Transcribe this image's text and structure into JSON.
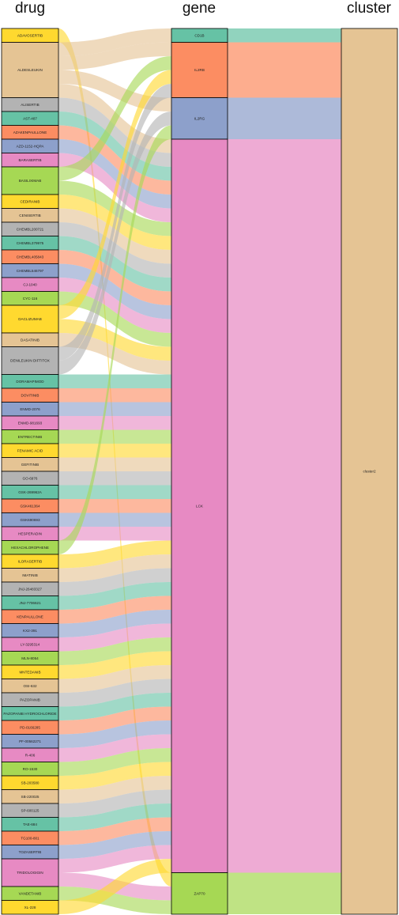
{
  "chart_data": {
    "type": "sankey",
    "stages": [
      "drug",
      "gene",
      "cluster"
    ],
    "drugs": [
      {
        "name": "ADAVOSERTIB",
        "weight": 1,
        "color": "#FFD92F"
      },
      {
        "name": "ALDESLEUKIN",
        "weight": 4,
        "color": "#E5C494"
      },
      {
        "name": "ALISERTIB",
        "weight": 1,
        "color": "#B3B3B3"
      },
      {
        "name": "AST-487",
        "weight": 1,
        "color": "#66C2A5"
      },
      {
        "name": "AZAKENPAULLONE",
        "weight": 1,
        "color": "#FC8D62"
      },
      {
        "name": "AZD-1152-HQPA",
        "weight": 1,
        "color": "#8DA0CB"
      },
      {
        "name": "BARASERTIB",
        "weight": 1,
        "color": "#E78AC3"
      },
      {
        "name": "BASILIXIMAB",
        "weight": 2,
        "color": "#A6D854"
      },
      {
        "name": "CEDIRANIB",
        "weight": 1,
        "color": "#FFD92F"
      },
      {
        "name": "CENISERTIB",
        "weight": 1,
        "color": "#E5C494"
      },
      {
        "name": "CHEMBL200721",
        "weight": 1,
        "color": "#B3B3B3"
      },
      {
        "name": "CHEMBL379975",
        "weight": 1,
        "color": "#66C2A5"
      },
      {
        "name": "CHEMBL405843",
        "weight": 1,
        "color": "#FC8D62"
      },
      {
        "name": "CHEMBL546797",
        "weight": 1,
        "color": "#8DA0CB"
      },
      {
        "name": "CJ-1040",
        "weight": 1,
        "color": "#E78AC3"
      },
      {
        "name": "CYC-116",
        "weight": 1,
        "color": "#A6D854"
      },
      {
        "name": "DACLIZUMAB",
        "weight": 2,
        "color": "#FFD92F"
      },
      {
        "name": "DASATINIB",
        "weight": 1,
        "color": "#E5C494"
      },
      {
        "name": "DENILEUKIN DIFTITOX",
        "weight": 2,
        "color": "#B3B3B3"
      },
      {
        "name": "DORAMAPIMOD",
        "weight": 1,
        "color": "#66C2A5"
      },
      {
        "name": "DOVITINIB",
        "weight": 1,
        "color": "#FC8D62"
      },
      {
        "name": "ENMD-2076",
        "weight": 1,
        "color": "#8DA0CB"
      },
      {
        "name": "ENMD-981693",
        "weight": 1,
        "color": "#E78AC3"
      },
      {
        "name": "ENTRECTINIB",
        "weight": 1,
        "color": "#A6D854"
      },
      {
        "name": "FENAMIC ACID",
        "weight": 1,
        "color": "#FFD92F"
      },
      {
        "name": "GEFITINIB",
        "weight": 1,
        "color": "#E5C494"
      },
      {
        "name": "GO-6976",
        "weight": 1,
        "color": "#B3B3B3"
      },
      {
        "name": "GSK-269962A",
        "weight": 1,
        "color": "#66C2A5"
      },
      {
        "name": "GSK461364",
        "weight": 1,
        "color": "#FC8D62"
      },
      {
        "name": "GSK690693",
        "weight": 1,
        "color": "#8DA0CB"
      },
      {
        "name": "HESPERADIN",
        "weight": 1,
        "color": "#E78AC3"
      },
      {
        "name": "HEXACHLOROPHENE",
        "weight": 1,
        "color": "#A6D854"
      },
      {
        "name": "ILORASERTIB",
        "weight": 1,
        "color": "#FFD92F"
      },
      {
        "name": "IMATINIB",
        "weight": 1,
        "color": "#E5C494"
      },
      {
        "name": "JNJ-26483327",
        "weight": 1,
        "color": "#B3B3B3"
      },
      {
        "name": "JNJ-7706621",
        "weight": 1,
        "color": "#66C2A5"
      },
      {
        "name": "KENPAULLONE",
        "weight": 1,
        "color": "#FC8D62"
      },
      {
        "name": "KX2-391",
        "weight": 1,
        "color": "#8DA0CB"
      },
      {
        "name": "LY-3295314",
        "weight": 1,
        "color": "#E78AC3"
      },
      {
        "name": "MLN-8054",
        "weight": 1,
        "color": "#A6D854"
      },
      {
        "name": "MNTEDANIB",
        "weight": 1,
        "color": "#FFD92F"
      },
      {
        "name": "OSI-632",
        "weight": 1,
        "color": "#E5C494"
      },
      {
        "name": "PAZOPANIB",
        "weight": 1,
        "color": "#B3B3B3"
      },
      {
        "name": "PAZOPANIB HYDROCHLORIDE",
        "weight": 1,
        "color": "#66C2A5"
      },
      {
        "name": "PD-0166285",
        "weight": 1,
        "color": "#FC8D62"
      },
      {
        "name": "PF-00562271",
        "weight": 1,
        "color": "#8DA0CB"
      },
      {
        "name": "R-406",
        "weight": 1,
        "color": "#E78AC3"
      },
      {
        "name": "RO-1530",
        "weight": 1,
        "color": "#A6D854"
      },
      {
        "name": "SB-203580",
        "weight": 1,
        "color": "#FFD92F"
      },
      {
        "name": "SB-220025",
        "weight": 1,
        "color": "#E5C494"
      },
      {
        "name": "SP-600125",
        "weight": 1,
        "color": "#B3B3B3"
      },
      {
        "name": "TAE-684",
        "weight": 1,
        "color": "#66C2A5"
      },
      {
        "name": "TG100-801",
        "weight": 1,
        "color": "#FC8D62"
      },
      {
        "name": "TOZASERTIB",
        "weight": 1,
        "color": "#8DA0CB"
      },
      {
        "name": "TRIDOLOGIGIN",
        "weight": 2,
        "color": "#E78AC3"
      },
      {
        "name": "VANDETANIB",
        "weight": 1,
        "color": "#A6D854"
      },
      {
        "name": "XL-228",
        "weight": 1,
        "color": "#FFD92F"
      }
    ],
    "genes": [
      {
        "name": "CD1B",
        "color": "#66C2A5"
      },
      {
        "name": "IL2RB",
        "color": "#FC8D62"
      },
      {
        "name": "IL2RG",
        "color": "#8DA0CB"
      },
      {
        "name": "LCK",
        "color": "#E78AC3"
      },
      {
        "name": "ZAP70",
        "color": "#A6D854"
      }
    ],
    "clusters": [
      {
        "name": "cluster2",
        "color": "#E5C494"
      }
    ],
    "links": [
      {
        "drug": "ADAVOSERTIB",
        "gene": "ZAP70"
      },
      {
        "drug": "ALDESLEUKIN",
        "gene": "CD1B"
      },
      {
        "drug": "ALDESLEUKIN",
        "gene": "IL2RB"
      },
      {
        "drug": "ALDESLEUKIN",
        "gene": "IL2RG"
      },
      {
        "drug": "ALDESLEUKIN",
        "gene": "LCK"
      },
      {
        "drug": "ALISERTIB",
        "gene": "LCK"
      },
      {
        "drug": "AST-487",
        "gene": "LCK"
      },
      {
        "drug": "AZAKENPAULLONE",
        "gene": "LCK"
      },
      {
        "drug": "AZD-1152-HQPA",
        "gene": "LCK"
      },
      {
        "drug": "BARASERTIB",
        "gene": "LCK"
      },
      {
        "drug": "BASILIXIMAB",
        "gene": "IL2RB"
      },
      {
        "drug": "BASILIXIMAB",
        "gene": "LCK"
      },
      {
        "drug": "CEDIRANIB",
        "gene": "LCK"
      },
      {
        "drug": "CENISERTIB",
        "gene": "LCK"
      },
      {
        "drug": "CHEMBL200721",
        "gene": "LCK"
      },
      {
        "drug": "CHEMBL379975",
        "gene": "LCK"
      },
      {
        "drug": "CHEMBL405843",
        "gene": "LCK"
      },
      {
        "drug": "CHEMBL546797",
        "gene": "LCK"
      },
      {
        "drug": "CJ-1040",
        "gene": "LCK"
      },
      {
        "drug": "CYC-116",
        "gene": "LCK"
      },
      {
        "drug": "DACLIZUMAB",
        "gene": "IL2RB"
      },
      {
        "drug": "DACLIZUMAB",
        "gene": "LCK"
      },
      {
        "drug": "DASATINIB",
        "gene": "LCK"
      },
      {
        "drug": "DENILEUKIN DIFTITOX",
        "gene": "IL2RB"
      },
      {
        "drug": "DENILEUKIN DIFTITOX",
        "gene": "IL2RG"
      },
      {
        "drug": "DORAMAPIMOD",
        "gene": "LCK"
      },
      {
        "drug": "DOVITINIB",
        "gene": "LCK"
      },
      {
        "drug": "ENMD-2076",
        "gene": "LCK"
      },
      {
        "drug": "ENMD-981693",
        "gene": "LCK"
      },
      {
        "drug": "ENTRECTINIB",
        "gene": "LCK"
      },
      {
        "drug": "FENAMIC ACID",
        "gene": "LCK"
      },
      {
        "drug": "GEFITINIB",
        "gene": "LCK"
      },
      {
        "drug": "GO-6976",
        "gene": "LCK"
      },
      {
        "drug": "GSK-269962A",
        "gene": "LCK"
      },
      {
        "drug": "GSK461364",
        "gene": "LCK"
      },
      {
        "drug": "GSK690693",
        "gene": "LCK"
      },
      {
        "drug": "HESPERADIN",
        "gene": "LCK"
      },
      {
        "drug": "HEXACHLOROPHENE",
        "gene": "IL2RG"
      },
      {
        "drug": "ILORASERTIB",
        "gene": "LCK"
      },
      {
        "drug": "IMATINIB",
        "gene": "LCK"
      },
      {
        "drug": "JNJ-26483327",
        "gene": "LCK"
      },
      {
        "drug": "JNJ-7706621",
        "gene": "LCK"
      },
      {
        "drug": "KENPAULLONE",
        "gene": "LCK"
      },
      {
        "drug": "KX2-391",
        "gene": "LCK"
      },
      {
        "drug": "LY-3295314",
        "gene": "LCK"
      },
      {
        "drug": "MLN-8054",
        "gene": "LCK"
      },
      {
        "drug": "MNTEDANIB",
        "gene": "LCK"
      },
      {
        "drug": "OSI-632",
        "gene": "LCK"
      },
      {
        "drug": "PAZOPANIB",
        "gene": "LCK"
      },
      {
        "drug": "PAZOPANIB HYDROCHLORIDE",
        "gene": "LCK"
      },
      {
        "drug": "PD-0166285",
        "gene": "LCK"
      },
      {
        "drug": "PF-00562271",
        "gene": "LCK"
      },
      {
        "drug": "R-406",
        "gene": "LCK"
      },
      {
        "drug": "RO-1530",
        "gene": "LCK"
      },
      {
        "drug": "SB-203580",
        "gene": "LCK"
      },
      {
        "drug": "SB-220025",
        "gene": "LCK"
      },
      {
        "drug": "SP-600125",
        "gene": "LCK"
      },
      {
        "drug": "TAE-684",
        "gene": "LCK"
      },
      {
        "drug": "TG100-801",
        "gene": "LCK"
      },
      {
        "drug": "TOZASERTIB",
        "gene": "LCK"
      },
      {
        "drug": "TRIDOLOGIGIN",
        "gene": "LCK"
      },
      {
        "drug": "TRIDOLOGIGIN",
        "gene": "ZAP70"
      },
      {
        "drug": "VANDETANIB",
        "gene": "ZAP70"
      },
      {
        "drug": "XL-228",
        "gene": "LCK"
      }
    ],
    "gene_to_cluster": [
      {
        "gene": "CD1B",
        "cluster": "cluster2"
      },
      {
        "gene": "IL2RB",
        "cluster": "cluster2"
      },
      {
        "gene": "IL2RG",
        "cluster": "cluster2"
      },
      {
        "gene": "LCK",
        "cluster": "cluster2"
      },
      {
        "gene": "ZAP70",
        "cluster": "cluster2"
      }
    ]
  }
}
